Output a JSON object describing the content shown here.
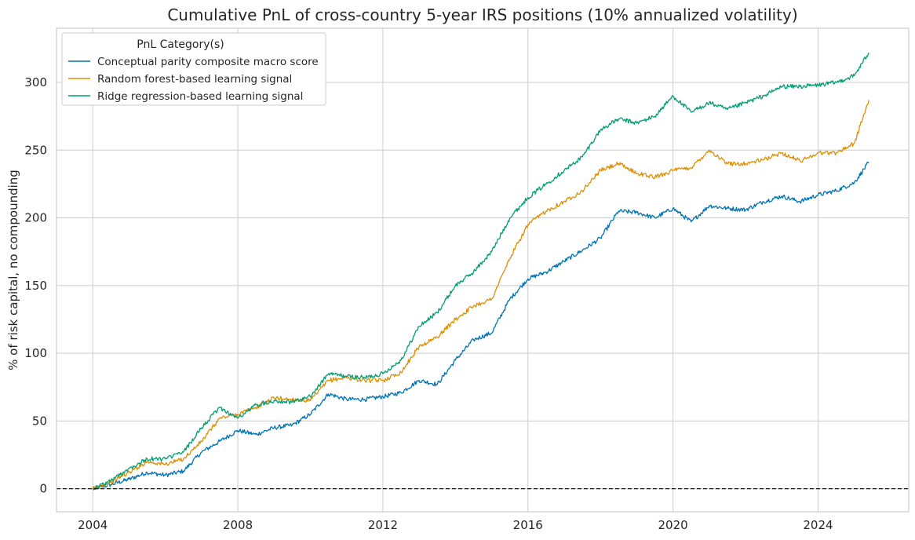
{
  "chart_data": {
    "type": "line",
    "title": "Cumulative PnL of cross-country 5-year IRS positions (10% annualized volatility)",
    "xlabel": "",
    "ylabel": "% of risk capital, no compounding",
    "xlim": [
      2003.0,
      2026.5
    ],
    "ylim": [
      -17,
      340
    ],
    "x_ticks": [
      2004,
      2008,
      2012,
      2016,
      2020,
      2024
    ],
    "x_tick_labels": [
      "2004",
      "2008",
      "2012",
      "2016",
      "2020",
      "2024"
    ],
    "y_ticks": [
      0,
      50,
      100,
      150,
      200,
      250,
      300
    ],
    "y_tick_labels": [
      "0",
      "50",
      "100",
      "150",
      "200",
      "250",
      "300"
    ],
    "grid": true,
    "zero_line": {
      "y": 0,
      "style": "dashed",
      "color": "#000000"
    },
    "legend": {
      "title": "PnL Category(s)",
      "placement": "upper-left"
    },
    "series": [
      {
        "name": "Conceptual parity composite macro score",
        "color": "#0173b2",
        "x": [
          2004.0,
          2004.5,
          2005.0,
          2005.5,
          2006.0,
          2006.5,
          2007.0,
          2007.5,
          2008.0,
          2008.5,
          2009.0,
          2009.5,
          2010.0,
          2010.5,
          2011.0,
          2011.5,
          2012.0,
          2012.5,
          2013.0,
          2013.5,
          2014.0,
          2014.5,
          2015.0,
          2015.5,
          2016.0,
          2016.5,
          2017.0,
          2017.5,
          2018.0,
          2018.5,
          2019.0,
          2019.5,
          2020.0,
          2020.5,
          2021.0,
          2021.5,
          2022.0,
          2022.5,
          2023.0,
          2023.5,
          2024.0,
          2024.5,
          2025.0,
          2025.4
        ],
        "y": [
          0,
          3,
          7,
          12,
          10,
          13,
          27,
          35,
          43,
          40,
          45,
          47,
          55,
          70,
          66,
          66,
          68,
          71,
          80,
          77,
          95,
          110,
          115,
          140,
          155,
          160,
          168,
          176,
          185,
          205,
          204,
          200,
          207,
          197,
          209,
          207,
          206,
          212,
          216,
          212,
          217,
          220,
          226,
          241
        ]
      },
      {
        "name": "Random forest-based learning signal",
        "color": "#de8f05",
        "x": [
          2004.0,
          2004.5,
          2005.0,
          2005.5,
          2006.0,
          2006.5,
          2007.0,
          2007.5,
          2008.0,
          2008.5,
          2009.0,
          2009.5,
          2010.0,
          2010.5,
          2011.0,
          2011.5,
          2012.0,
          2012.5,
          2013.0,
          2013.5,
          2014.0,
          2014.5,
          2015.0,
          2015.5,
          2016.0,
          2016.5,
          2017.0,
          2017.5,
          2018.0,
          2018.5,
          2019.0,
          2019.5,
          2020.0,
          2020.5,
          2021.0,
          2021.5,
          2022.0,
          2022.5,
          2023.0,
          2023.5,
          2024.0,
          2024.5,
          2025.0,
          2025.4
        ],
        "y": [
          0,
          5,
          12,
          20,
          18,
          22,
          35,
          52,
          55,
          60,
          67,
          66,
          65,
          80,
          82,
          80,
          80,
          86,
          105,
          112,
          125,
          135,
          140,
          170,
          195,
          205,
          212,
          220,
          235,
          240,
          233,
          230,
          235,
          237,
          250,
          240,
          240,
          243,
          248,
          242,
          248,
          248,
          255,
          287
        ]
      },
      {
        "name": "Ridge regression-based learning signal",
        "color": "#029e73",
        "x": [
          2004.0,
          2004.5,
          2005.0,
          2005.5,
          2006.0,
          2006.5,
          2007.0,
          2007.5,
          2008.0,
          2008.5,
          2009.0,
          2009.5,
          2010.0,
          2010.5,
          2011.0,
          2011.5,
          2012.0,
          2012.5,
          2013.0,
          2013.5,
          2014.0,
          2014.5,
          2015.0,
          2015.5,
          2016.0,
          2016.5,
          2017.0,
          2017.5,
          2018.0,
          2018.5,
          2019.0,
          2019.5,
          2020.0,
          2020.5,
          2021.0,
          2021.5,
          2022.0,
          2022.5,
          2023.0,
          2023.5,
          2024.0,
          2024.5,
          2025.0,
          2025.4
        ],
        "y": [
          0,
          6,
          15,
          22,
          22,
          27,
          45,
          60,
          52,
          62,
          65,
          64,
          68,
          85,
          83,
          82,
          85,
          95,
          120,
          130,
          150,
          160,
          175,
          200,
          215,
          225,
          235,
          245,
          265,
          273,
          270,
          275,
          290,
          278,
          285,
          280,
          285,
          290,
          297,
          297,
          298,
          300,
          305,
          322
        ]
      }
    ]
  }
}
